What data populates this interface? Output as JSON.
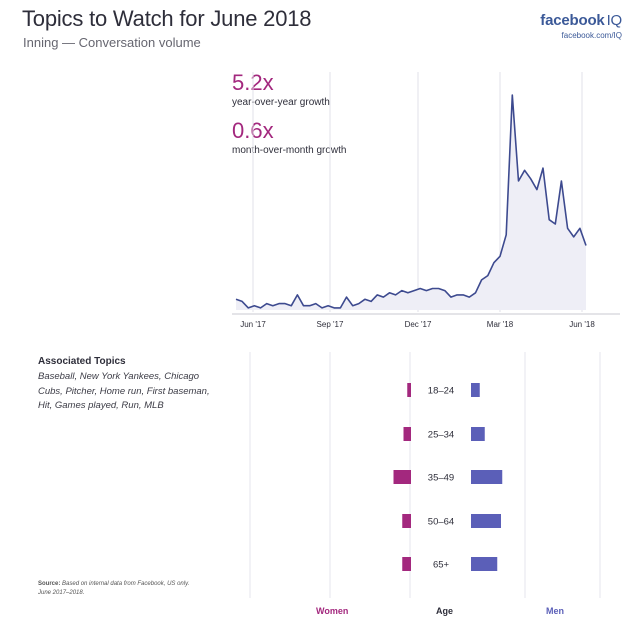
{
  "header": {
    "title": "Topics to Watch for June 2018",
    "subtitle": "Inning — Conversation volume",
    "brand": "facebook",
    "brand_suffix": "IQ",
    "brand_url": "facebook.com/IQ"
  },
  "stats": [
    {
      "value": "5.2x",
      "label": "year-over-year growth"
    },
    {
      "value": "0.6x",
      "label": "month-over-month growth"
    }
  ],
  "chart_data": [
    {
      "type": "area",
      "title": "",
      "xlabel": "",
      "ylabel": "",
      "x_ticks": [
        "Jun '17",
        "Sep '17",
        "Dec '17",
        "Mar '18",
        "Jun '18"
      ],
      "ylim": [
        0,
        100
      ],
      "grid": "vertical",
      "series": [
        {
          "values": [
            5,
            4,
            1,
            2,
            1,
            3,
            2,
            3,
            3,
            2,
            7,
            2,
            2,
            3,
            1,
            2,
            1,
            1,
            6,
            2,
            3,
            5,
            4,
            7,
            6,
            8,
            7,
            9,
            8,
            9,
            10,
            9,
            10,
            10,
            9,
            6,
            7,
            7,
            6,
            8,
            14,
            16,
            22,
            25,
            35,
            100,
            60,
            65,
            61,
            56,
            66,
            42,
            40,
            60,
            38,
            34,
            38,
            30
          ],
          "color": "#3d4a8f"
        }
      ]
    },
    {
      "type": "bar",
      "title": "",
      "xlabel": "Age",
      "categories": [
        "18–24",
        "25–34",
        "35–49",
        "50–64",
        "65+"
      ],
      "series": [
        {
          "name": "Women",
          "values": [
            3,
            6,
            14,
            7,
            7
          ],
          "color": "#a3287e"
        },
        {
          "name": "Men",
          "values": [
            7,
            11,
            25,
            24,
            21
          ],
          "color": "#5b5fb8"
        }
      ]
    }
  ],
  "topics": {
    "heading": "Associated Topics",
    "list": "Baseball, New York Yankees, Chicago Cubs, Pitcher, Home run, First baseman, Hit, Games played, Run, MLB"
  },
  "source": {
    "label": "Source:",
    "text": "Based on internal data from Facebook, US only. June 2017–2018."
  },
  "footer": {
    "women": "Women",
    "age": "Age",
    "men": "Men"
  }
}
